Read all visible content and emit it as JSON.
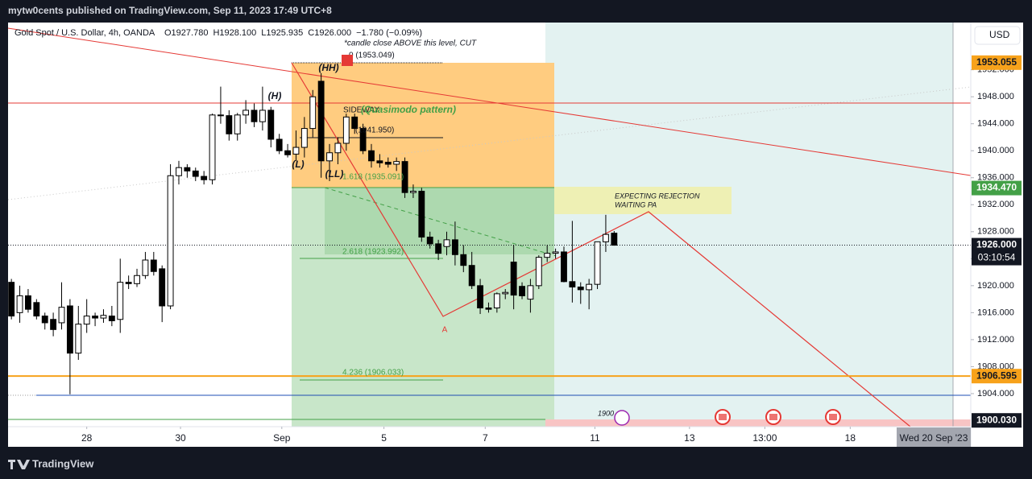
{
  "header": {
    "publisher": "mytw0cents published on TradingView.com, Sep 11, 2023 17:49 UTC+8",
    "brand": "TradingView"
  },
  "chart_data": {
    "type": "candlestick",
    "title": "Gold Spot / U.S. Dollar, 4h, OANDA",
    "ohlc": [
      "O1927.780",
      "H1928.100",
      "L1925.935",
      "C1926.000",
      "−1.780 (−0.09%)"
    ],
    "currency": "USD",
    "open": [
      1920.5,
      1916,
      1918.5,
      1917.5,
      1915.5,
      1915,
      1914.5,
      1917,
      1910,
      1914.3,
      1915.5,
      1915.2,
      1915.5,
      1915,
      1920.5,
      1920.3,
      1921.5,
      1923.8,
      1922.5,
      1917,
      1936.3,
      1937.5,
      1937,
      1936.2,
      1935.7,
      1945.3,
      1945.2,
      1942.5,
      1945.3,
      1946,
      1944.3,
      1946,
      1941.7,
      1940,
      1939.5,
      1940.5,
      1943.3,
      1950.3,
      1938.5,
      1939.7,
      1941.1,
      1945,
      1943.3,
      1940,
      1938.5,
      1938.3,
      1938,
      1938.4,
      1933.8,
      1934,
      1927.2,
      1926.2,
      1925.8,
      1926.8,
      1924.6,
      1923,
      1920,
      1916.7,
      1916.7,
      1918.8,
      1923.5,
      1919.9,
      1918,
      1920,
      1924.2,
      1924.8,
      1925,
      1920.6,
      1919.8,
      1919.4,
      1920.2,
      1926.5,
      1927.78
    ],
    "high": [
      1921,
      1920,
      1919.5,
      1918,
      1916,
      1916,
      1920.5,
      1918,
      1917,
      1918,
      1916,
      1916.5,
      1917,
      1924,
      1921.5,
      1922.5,
      1925,
      1925,
      1923,
      1938,
      1938.5,
      1938,
      1937.5,
      1937,
      1945.5,
      1949.5,
      1946,
      1945.6,
      1947.5,
      1947,
      1949.5,
      1946.5,
      1942.5,
      1941,
      1943,
      1945,
      1949,
      1951.5,
      1941,
      1942,
      1945.5,
      1945.5,
      1944,
      1941,
      1939.5,
      1939,
      1939,
      1939,
      1935,
      1934.5,
      1928,
      1926.8,
      1928,
      1929.5,
      1926,
      1925,
      1921,
      1917.5,
      1919,
      1919.5,
      1926,
      1920.5,
      1921,
      1924.5,
      1926,
      1925.5,
      1925.8,
      1929.6,
      1920.5,
      1921,
      1926.5,
      1930.5,
      1928.1
    ],
    "low": [
      1915,
      1914.5,
      1916,
      1915,
      1913.5,
      1912.5,
      1913.5,
      1903.9,
      1909,
      1913,
      1914,
      1914.5,
      1914,
      1913,
      1919.5,
      1919.8,
      1921,
      1921.5,
      1914.6,
      1916.5,
      1935,
      1936,
      1935.5,
      1935,
      1935,
      1944,
      1941.5,
      1941.5,
      1944,
      1943.5,
      1943,
      1940.5,
      1939.5,
      1939,
      1938.5,
      1939,
      1942,
      1936,
      1935.5,
      1938,
      1940,
      1942.5,
      1939.5,
      1937.5,
      1937.5,
      1937.5,
      1937,
      1933,
      1933,
      1926.5,
      1925.5,
      1923.8,
      1924.5,
      1923,
      1922,
      1919.5,
      1915.8,
      1916,
      1916,
      1918,
      1916.5,
      1918,
      1916,
      1919.5,
      1923.5,
      1924,
      1920.5,
      1917.5,
      1917.3,
      1916.5,
      1919.5,
      1925,
      1925.935
    ],
    "close": [
      1915.5,
      1918.5,
      1916.5,
      1915.5,
      1914.5,
      1913.5,
      1916.8,
      1910,
      1914.3,
      1915.5,
      1915.2,
      1915.6,
      1914.8,
      1920.5,
      1920.3,
      1921.5,
      1923.8,
      1922.1,
      1917,
      1936.3,
      1937.5,
      1937,
      1936.2,
      1935.7,
      1945.3,
      1945.2,
      1942.5,
      1945.3,
      1946,
      1944.3,
      1946,
      1941.7,
      1940,
      1939.4,
      1940.5,
      1943.3,
      1948,
      1938.5,
      1939.7,
      1941.1,
      1945,
      1943.3,
      1940,
      1938.5,
      1938.2,
      1938,
      1938.4,
      1933.8,
      1934,
      1927.2,
      1926.2,
      1924.8,
      1926.8,
      1924.6,
      1923,
      1920,
      1916.7,
      1916.5,
      1918.8,
      1919,
      1918.6,
      1918.5,
      1920,
      1924.2,
      1924.8,
      1925,
      1920.6,
      1919.8,
      1919.4,
      1920.2,
      1926.5,
      1927.6,
      1926.0
    ],
    "up_color": "#ffffff",
    "down_color": "#000000",
    "xlim": [
      -0.4,
      114.6
    ],
    "xticks": [
      {
        "value": 9,
        "label": "28"
      },
      {
        "value": 20.2,
        "label": "30"
      },
      {
        "value": 32.3,
        "label": "Sep"
      },
      {
        "value": 44.5,
        "label": "5"
      },
      {
        "value": 56.6,
        "label": "7"
      },
      {
        "value": 69.7,
        "label": "11"
      },
      {
        "value": 81,
        "label": "13"
      },
      {
        "value": 90,
        "label": "13:00"
      },
      {
        "value": 100.2,
        "label": "18"
      }
    ],
    "ylim": [
      1899.1,
      1959.0
    ],
    "yticks": [
      {
        "value": 1904,
        "label": "1904.000"
      },
      {
        "value": 1908,
        "label": "1908.000"
      },
      {
        "value": 1912,
        "label": "1912.000"
      },
      {
        "value": 1916,
        "label": "1916.000"
      },
      {
        "value": 1920,
        "label": "1920.000"
      },
      {
        "value": 1924,
        "label": "1924.000"
      },
      {
        "value": 1928,
        "label": "1928.000"
      },
      {
        "value": 1932,
        "label": "1932.000"
      },
      {
        "value": 1936,
        "label": "1936.000"
      },
      {
        "value": 1940,
        "label": "1940.000"
      },
      {
        "value": 1944,
        "label": "1944.000"
      },
      {
        "value": 1948,
        "label": "1948.000"
      },
      {
        "value": 1952,
        "label": "1952.000"
      }
    ],
    "price_labels": [
      {
        "value": 1953.055,
        "label": "1953.055",
        "color": "#f7a21b",
        "text_color": "#131722",
        "line": "none"
      },
      {
        "value": 1934.47,
        "label": "1934.470",
        "color": "#43a047",
        "text_color": "#ffffff",
        "line": "none"
      },
      {
        "value": 1926,
        "label": "1926.000",
        "color": "#131722",
        "text_color": "#ffffff",
        "line": "dotted",
        "countdown": "03:10:54"
      },
      {
        "value": 1906.595,
        "label": "1906.595",
        "color": "#f7a21b",
        "text_color": "#131722",
        "line": "solid"
      },
      {
        "value": 1900.03,
        "label": "1900.030",
        "color": "#131722",
        "text_color": "#ffffff",
        "line": "none"
      }
    ],
    "crosshair_time": "Wed 20 Sep '23",
    "annotations": {
      "cut_note": "*candle close ABOVE this level, CUT",
      "fib_0": "0 (1953.049)",
      "fib_mid": "(1941.950)",
      "fib_1618": "1.618 (1935.091)",
      "fib_2618": "2.618 (1923.992)",
      "fib_4236": "4.236 (1906.033)",
      "hh": "(HH)",
      "h": "(H)",
      "l": "(L)",
      "ll": "(LL)",
      "sideway": "SIDEWAY",
      "pattern": "(Quasimodo pattern)",
      "expect_1": "EXPECTING REJECTION",
      "expect_2": "WAITING PA",
      "point_a": "A",
      "event_1900": "1900"
    }
  }
}
